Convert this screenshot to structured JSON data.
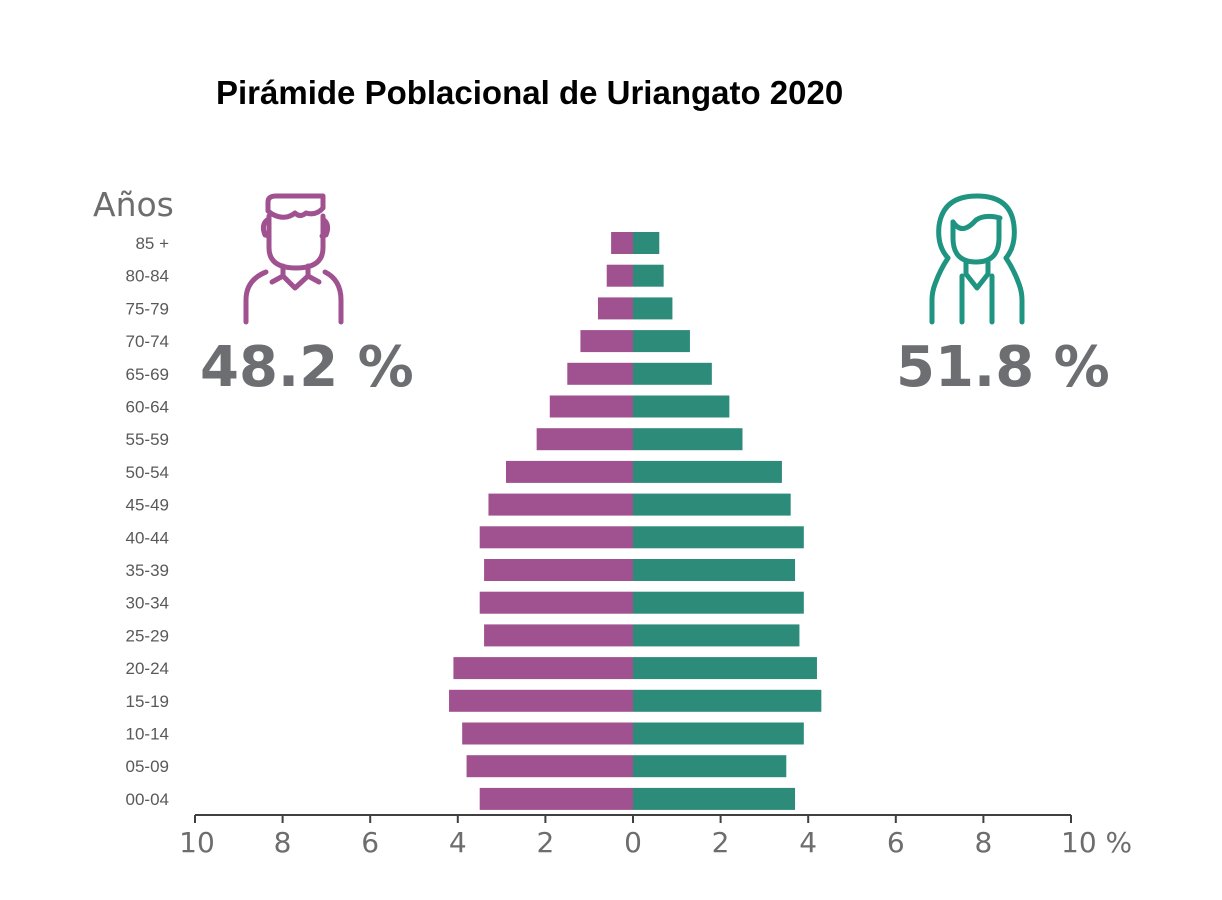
{
  "chart_data": {
    "type": "bar",
    "title": "Pirámide Poblacional de Uriangato 2020",
    "ylabel": "Años",
    "x_unit": "%",
    "xlim": [
      -10,
      10
    ],
    "categories": [
      "85 +",
      "80-84",
      "75-79",
      "70-74",
      "65-69",
      "60-64",
      "55-59",
      "50-54",
      "45-49",
      "40-44",
      "35-39",
      "30-34",
      "25-29",
      "20-24",
      "15-19",
      "10-14",
      "05-09",
      "00-04"
    ],
    "tick_labels": [
      "10",
      "8",
      "6",
      "4",
      "2",
      "0",
      "2",
      "4",
      "6",
      "8",
      "10 %"
    ],
    "tick_values": [
      -10,
      -8,
      -6,
      -4,
      -2,
      0,
      2,
      4,
      6,
      8,
      10
    ],
    "series": [
      {
        "values": [
          0.5,
          0.6,
          0.8,
          1.2,
          1.5,
          1.9,
          2.2,
          2.9,
          3.3,
          3.5,
          3.4,
          3.5,
          3.4,
          4.1,
          4.2,
          3.9,
          3.8,
          3.5
        ],
        "color": "#a0518f"
      },
      {
        "values": [
          0.6,
          0.7,
          0.9,
          1.3,
          1.8,
          2.2,
          2.5,
          3.4,
          3.6,
          3.9,
          3.7,
          3.9,
          3.8,
          4.2,
          4.3,
          3.9,
          3.5,
          3.7
        ],
        "color": "#2d8b7a"
      }
    ],
    "totals": {
      "male": "48.2 %",
      "female": "51.8 %"
    },
    "grid": false,
    "legend": "none"
  },
  "icons": {
    "male": "man-icon",
    "female": "woman-icon"
  },
  "colors": {
    "male": "#a0518f",
    "female": "#2d8b7a",
    "female_icon": "#1f9480",
    "axis": "#404040",
    "text": "#6d6d6d"
  }
}
